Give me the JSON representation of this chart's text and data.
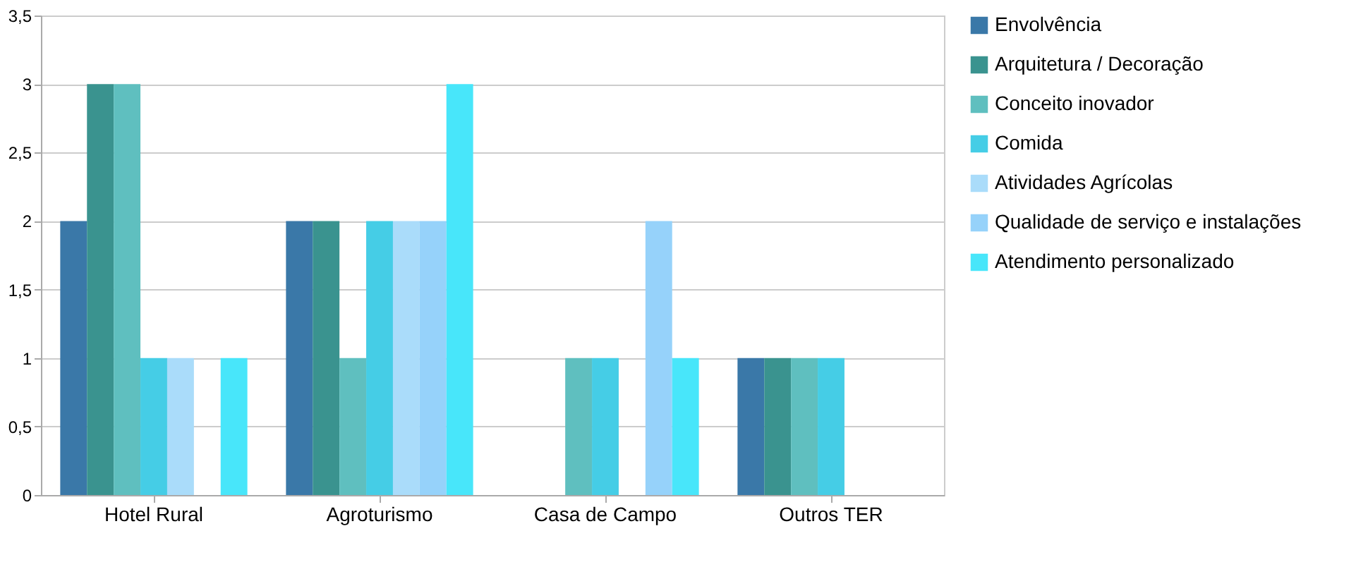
{
  "chart_data": {
    "type": "bar",
    "categories": [
      "Hotel Rural",
      "Agroturismo",
      "Casa de Campo",
      "Outros TER"
    ],
    "series": [
      {
        "name": "Envolvência",
        "color": "#3a78a8",
        "values": [
          2,
          2,
          null,
          1
        ]
      },
      {
        "name": "Arquitetura / Decoração",
        "color": "#3a938f",
        "values": [
          3,
          2,
          null,
          1
        ]
      },
      {
        "name": "Conceito inovador",
        "color": "#5fbfbf",
        "values": [
          3,
          1,
          1,
          1
        ]
      },
      {
        "name": "Comida",
        "color": "#45cde6",
        "values": [
          1,
          2,
          1,
          1
        ]
      },
      {
        "name": "Atividades Agrícolas",
        "color": "#aadcfa",
        "values": [
          1,
          2,
          null,
          null
        ]
      },
      {
        "name": "Qualidade de serviço e instalações",
        "color": "#96d2fa",
        "values": [
          null,
          2,
          2,
          null
        ]
      },
      {
        "name": "Atendimento personalizado",
        "color": "#48e6fa",
        "values": [
          1,
          3,
          1,
          null
        ]
      }
    ],
    "ylim": [
      0,
      3.5
    ],
    "yticks": [
      0,
      {
        "value": 0.5,
        "label": "0,5"
      },
      1,
      {
        "value": 1.5,
        "label": "1,5"
      },
      2,
      {
        "value": 2.5,
        "label": "2,5"
      },
      3,
      {
        "value": 3.5,
        "label": "3,5"
      }
    ],
    "grid": "y",
    "legend": "right"
  }
}
